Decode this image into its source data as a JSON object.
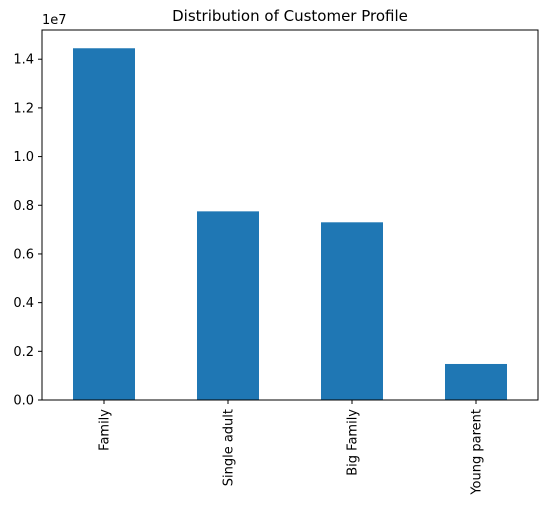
{
  "chart_data": {
    "type": "bar",
    "title": "Distribution of Customer Profile",
    "categories": [
      "Family",
      "Single adult",
      "Big Family",
      "Young parent"
    ],
    "values": [
      14450000,
      7750000,
      7300000,
      1480000
    ],
    "ylim": [
      0,
      15200000
    ],
    "yticks": [
      0,
      2000000,
      4000000,
      6000000,
      8000000,
      10000000,
      12000000,
      14000000
    ],
    "ytick_labels": [
      "0.0",
      "0.2",
      "0.4",
      "0.6",
      "0.8",
      "1.0",
      "1.2",
      "1.4"
    ],
    "offset_label": "1e7",
    "xlabel": "",
    "ylabel": "",
    "bar_color": "#1f77b4",
    "grid": false,
    "legend": false
  }
}
